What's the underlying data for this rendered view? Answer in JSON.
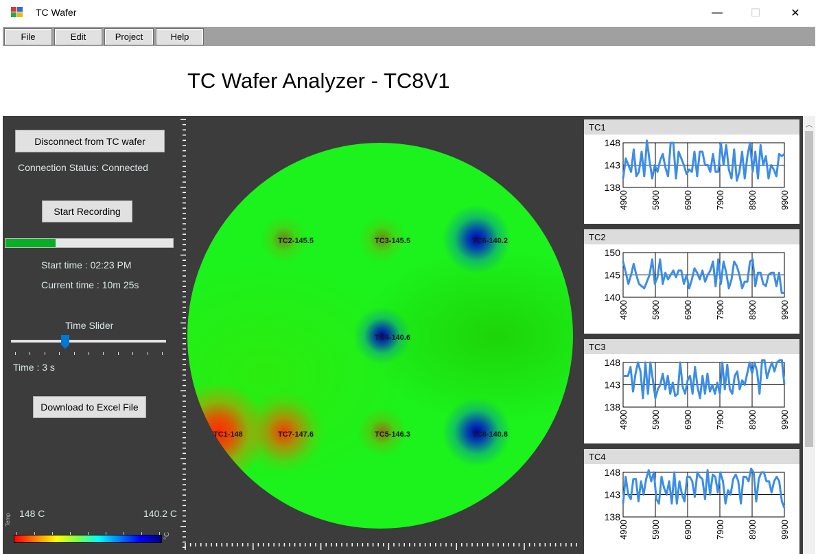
{
  "window": {
    "title": "TC Wafer",
    "minimize": "—",
    "maximize": "☐",
    "close": "✕"
  },
  "menu": {
    "file": "File",
    "edit": "Edit",
    "project": "Project",
    "help": "Help"
  },
  "app_title": "TC Wafer Analyzer - TC8V1",
  "left_panel": {
    "disconnect_button": "Disconnect from TC wafer",
    "connection_status": "Connection Status: Connected",
    "start_recording_button": "Start Recording",
    "progress_fraction": 0.3,
    "start_time": "Start time : 02:23 PM",
    "current_time": "Current time : 10m 25s",
    "time_slider_label": "Time Slider",
    "time_slider_fraction": 0.35,
    "time_readout": "Time : 3 s",
    "download_button": "Download to Excel File",
    "colorbar_max": "148 C",
    "colorbar_min": "140.2 C",
    "colorbar_axis_label": "Temp",
    "colorbar_unit": "°C"
  },
  "wafer": {
    "labels": [
      "TC2-145.5",
      "TC3-145.5",
      "TC6-140.2",
      "TC4-140.6",
      "TC1-148",
      "TC7-147.6",
      "TC5-146.3",
      "TC8-140.8"
    ]
  },
  "colors": {
    "panel_bg": "#3c3c3c",
    "line": "#3c8de6",
    "progress": "#06b025",
    "slider": "#0078d7"
  },
  "chart_data": [
    {
      "type": "line",
      "title": "TC1",
      "x_ticks": [
        "4900",
        "5900",
        "6900",
        "7900",
        "8900",
        "9900"
      ],
      "xlim": [
        4900,
        9900
      ],
      "ylim": [
        138,
        148
      ],
      "y_ticks": [
        "148",
        "143",
        "138"
      ],
      "series": [
        {
          "values": [
            140,
            144.5,
            143,
            141.5,
            146.5,
            140.5,
            141.5,
            146,
            140.5,
            148.5,
            144,
            140,
            143,
            141.5,
            144,
            145.5,
            142.5,
            140.5,
            148,
            148,
            140,
            146,
            144.5,
            143,
            141,
            142,
            141.5,
            146,
            140.5,
            146,
            146,
            143,
            143,
            141.5,
            145.5,
            141.5,
            141.5,
            148,
            143,
            147.5,
            142,
            140,
            146.5,
            139.5,
            141.5,
            146,
            140,
            145,
            148,
            141.5,
            146,
            140,
            147.5,
            143,
            145,
            140,
            143,
            142,
            140.5,
            145.5,
            145,
            145.5
          ]
        }
      ]
    },
    {
      "type": "line",
      "title": "TC2",
      "x_ticks": [
        "4900",
        "5900",
        "6900",
        "7900",
        "8900",
        "9900"
      ],
      "xlim": [
        4900,
        9900
      ],
      "ylim": [
        140,
        150
      ],
      "y_ticks": [
        "150",
        "145",
        "140"
      ],
      "series": [
        {
          "values": [
            148,
            145.5,
            143,
            145,
            147.5,
            145,
            143,
            142.5,
            142,
            143.5,
            145,
            148.5,
            143,
            144.5,
            148.5,
            143,
            145.5,
            144,
            145,
            146,
            144.5,
            146,
            146,
            143,
            145,
            142,
            144,
            146.5,
            145.5,
            144,
            146,
            143.5,
            145,
            146,
            148,
            142.5,
            148.5,
            143,
            148,
            145.5,
            142,
            144,
            148,
            147,
            145,
            142,
            143.5,
            143.5,
            148,
            148.5,
            142.5,
            145.5,
            145.5,
            143,
            142.5,
            145,
            145.5,
            145.5,
            142.5,
            145.5,
            141,
            141
          ]
        }
      ]
    },
    {
      "type": "line",
      "title": "TC3",
      "x_ticks": [
        "4900",
        "5900",
        "6900",
        "7900",
        "8900",
        "9900"
      ],
      "xlim": [
        4900,
        9900
      ],
      "ylim": [
        138,
        148
      ],
      "y_ticks": [
        "148",
        "143",
        "138"
      ],
      "series": [
        {
          "values": [
            145,
            145,
            145,
            147,
            141.5,
            145.5,
            148,
            146,
            140,
            148,
            141,
            148,
            144,
            140,
            142,
            143,
            145.5,
            142,
            145,
            141,
            143.5,
            140.5,
            141,
            148,
            142.5,
            141,
            144,
            145,
            141,
            147,
            142.5,
            140,
            145,
            141,
            145.5,
            141.5,
            143,
            141,
            143.5,
            141,
            148,
            142,
            147.5,
            142,
            141,
            145,
            146,
            142,
            144,
            143,
            145.5,
            148,
            145.5,
            148,
            146,
            141,
            148.5,
            148.5,
            144.5,
            146.5,
            148,
            146,
            148,
            148.5,
            148.5,
            143
          ]
        }
      ]
    },
    {
      "type": "line",
      "title": "TC4",
      "x_ticks": [
        "4900",
        "5900",
        "6900",
        "7900",
        "8900",
        "9900"
      ],
      "xlim": [
        4900,
        9900
      ],
      "ylim": [
        138,
        148
      ],
      "y_ticks": [
        "148",
        "143",
        "138"
      ],
      "series": [
        {
          "values": [
            141,
            147,
            143,
            142,
            146.5,
            146.5,
            141.5,
            146,
            143,
            146.5,
            148.5,
            146,
            148,
            142,
            141,
            147,
            144.5,
            143,
            146,
            141,
            148,
            141,
            146,
            143,
            141.5,
            147,
            147,
            146,
            142.5,
            148,
            147,
            146.5,
            142,
            148.5,
            143,
            147.5,
            147,
            143.5,
            148,
            146,
            141,
            144,
            143,
            146.5,
            147.5,
            146,
            141,
            147,
            147,
            146,
            149,
            148,
            141.5,
            146.5,
            148,
            148,
            146,
            146,
            143.5,
            146,
            147,
            146,
            141.5,
            140
          ]
        }
      ]
    }
  ]
}
